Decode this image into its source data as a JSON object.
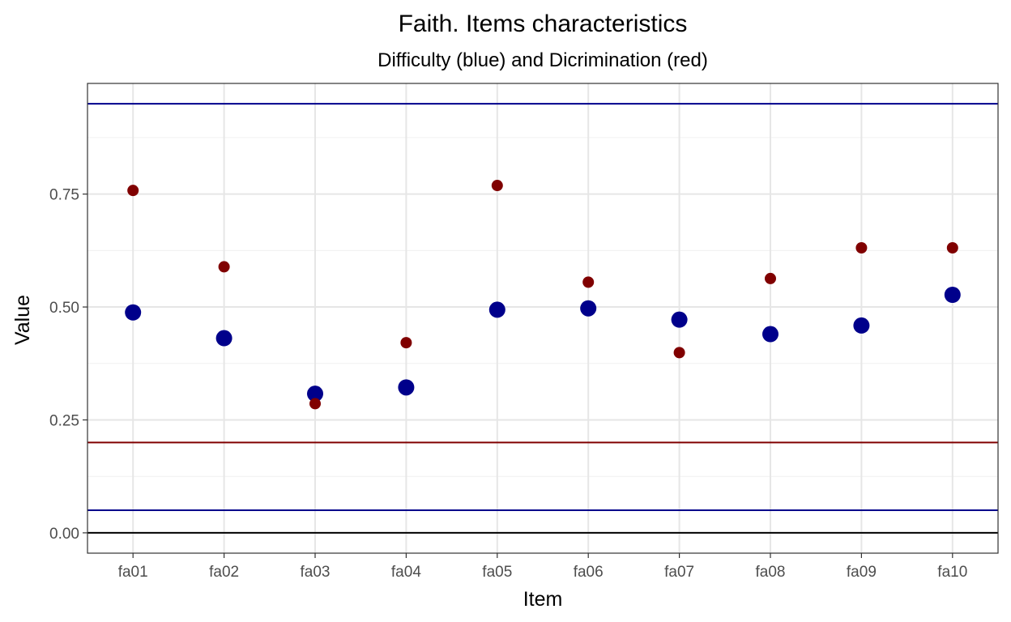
{
  "chart_data": {
    "type": "scatter",
    "title": "Faith. Items characteristics",
    "subtitle": "Difficulty (blue) and Dicrimination (red)",
    "xlabel": "Item",
    "ylabel": "Value",
    "categories": [
      "fa01",
      "fa02",
      "fa03",
      "fa04",
      "fa05",
      "fa06",
      "fa07",
      "fa08",
      "fa09",
      "fa10"
    ],
    "ylim": [
      -0.045,
      0.995
    ],
    "yticks": [
      0.0,
      0.25,
      0.5,
      0.75
    ],
    "ytick_labels": [
      "0.00",
      "0.25",
      "0.50",
      "0.75"
    ],
    "grid": true,
    "series": [
      {
        "role": "difficulty",
        "color": "#00008B",
        "values": [
          0.488,
          0.431,
          0.308,
          0.322,
          0.494,
          0.497,
          0.472,
          0.44,
          0.459,
          0.527
        ]
      },
      {
        "role": "discrimination",
        "color": "#800000",
        "values": [
          0.758,
          0.589,
          0.286,
          0.421,
          0.769,
          0.555,
          0.399,
          0.563,
          0.631,
          0.631
        ]
      }
    ],
    "reference_lines": [
      {
        "y": 0.95,
        "color": "#00008B"
      },
      {
        "y": 0.05,
        "color": "#00008B"
      },
      {
        "y": 0.2,
        "color": "#800000"
      },
      {
        "y": 0.0,
        "color": "#000000"
      }
    ]
  }
}
